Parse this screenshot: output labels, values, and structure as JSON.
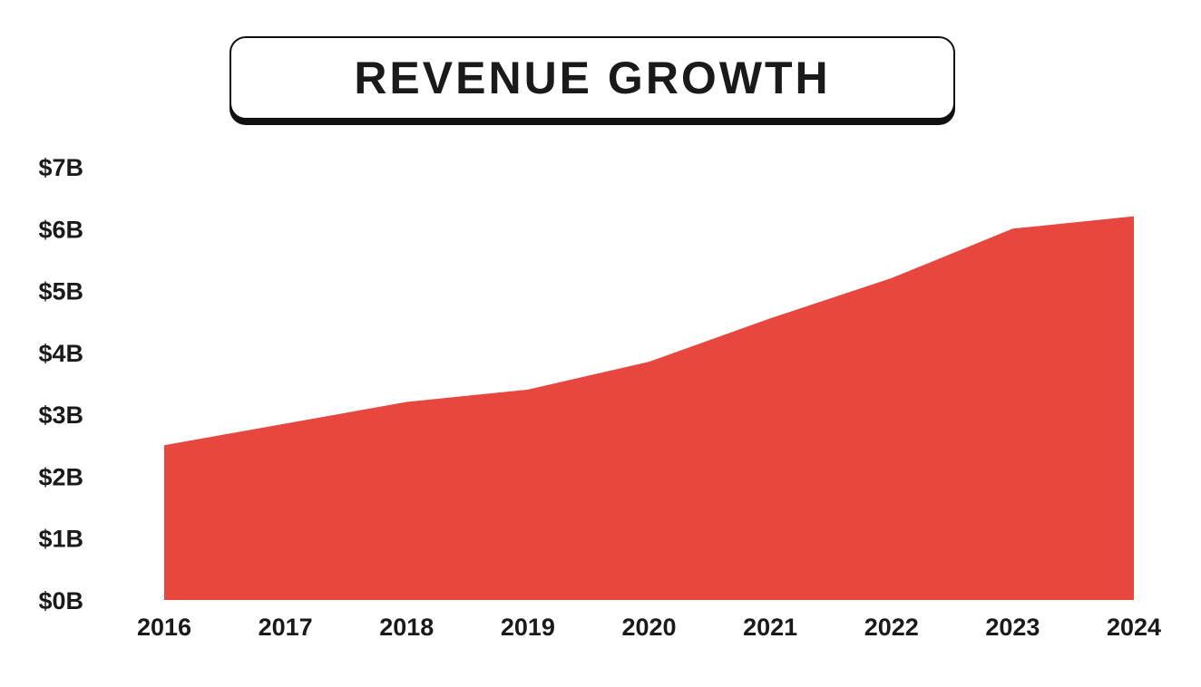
{
  "chart_data": {
    "type": "area",
    "title": "REVENUE GROWTH",
    "xlabel": "",
    "ylabel": "",
    "categories": [
      "2016",
      "2017",
      "2018",
      "2019",
      "2020",
      "2021",
      "2022",
      "2023",
      "2024"
    ],
    "series": [
      {
        "values": [
          2.5,
          2.85,
          3.2,
          3.4,
          3.85,
          4.55,
          5.2,
          6.0,
          6.2
        ],
        "color": "#E8473F"
      }
    ],
    "ylim": [
      0,
      7
    ],
    "y_ticks": [
      "$0B",
      "$1B",
      "$2B",
      "$3B",
      "$4B",
      "$5B",
      "$6B",
      "$7B"
    ],
    "grid": false,
    "legend": "none"
  }
}
